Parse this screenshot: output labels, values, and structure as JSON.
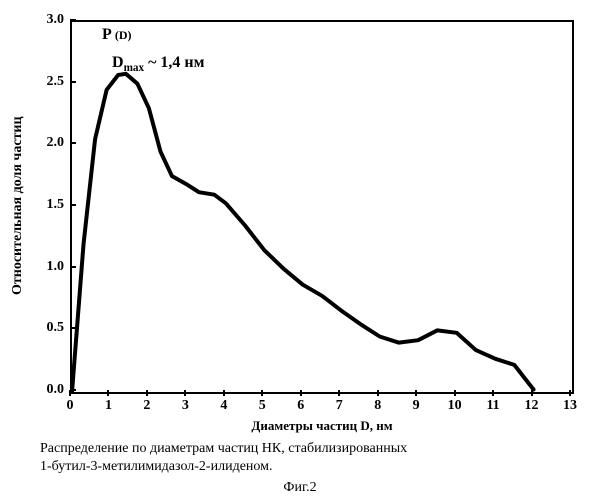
{
  "chart": {
    "type": "line",
    "xlim": [
      0,
      13
    ],
    "ylim": [
      0,
      3.0
    ],
    "xtick_step": 1,
    "ytick_step": 0.5,
    "x_ticks": [
      0,
      1,
      2,
      3,
      4,
      5,
      6,
      7,
      8,
      9,
      10,
      11,
      12,
      13
    ],
    "y_ticks": [
      "0.0",
      "0.5",
      "1.0",
      "1.5",
      "2.0",
      "2.5",
      "3.0"
    ],
    "xlabel": "Диаметры частиц D, нм",
    "ylabel": "Относительная доля частиц",
    "p_label": "P",
    "p_label_sub": "(D)",
    "dmax_label_prefix": "D",
    "dmax_label_sub": "max",
    "dmax_label_suffix": "~  1,4 нм",
    "line_color": "#000000",
    "line_width": 4,
    "border_color": "#000000",
    "background_color": "#ffffff",
    "label_fontsize": 14,
    "tick_fontsize": 14,
    "series": {
      "x": [
        0,
        0.3,
        0.6,
        0.9,
        1.2,
        1.4,
        1.7,
        2.0,
        2.3,
        2.6,
        3.0,
        3.3,
        3.7,
        4.0,
        4.5,
        5.0,
        5.5,
        6.0,
        6.5,
        7.0,
        7.5,
        8.0,
        8.5,
        9.0,
        9.5,
        10.0,
        10.5,
        11.0,
        11.5,
        12.0
      ],
      "y": [
        0,
        1.2,
        2.05,
        2.45,
        2.57,
        2.58,
        2.5,
        2.3,
        1.95,
        1.75,
        1.68,
        1.62,
        1.6,
        1.53,
        1.35,
        1.15,
        1.0,
        0.87,
        0.78,
        0.66,
        0.55,
        0.45,
        0.4,
        0.42,
        0.5,
        0.48,
        0.34,
        0.27,
        0.22,
        0.02
      ]
    }
  },
  "caption_line1": "Распределение по диаметрам частиц НК, стабилизированных",
  "caption_line2": "1-бутил-3-метилимидазол-2-илиденом.",
  "figure_label": "Фиг.2"
}
